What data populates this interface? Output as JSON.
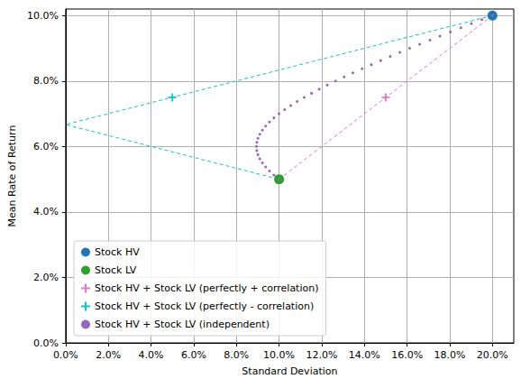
{
  "chart_data": {
    "type": "scatter",
    "x_label": "Standard Deviation",
    "y_label": "Mean Rate of Return",
    "xlim": [
      0,
      21
    ],
    "ylim": [
      0,
      10.2
    ],
    "xticks": [
      {
        "value": 0,
        "label": "0.0%"
      },
      {
        "value": 2,
        "label": "2.0%"
      },
      {
        "value": 4,
        "label": "4.0%"
      },
      {
        "value": 6,
        "label": "6.0%"
      },
      {
        "value": 8,
        "label": "8.0%"
      },
      {
        "value": 10,
        "label": "10.0%"
      },
      {
        "value": 12,
        "label": "12.0%"
      },
      {
        "value": 14,
        "label": "14.0%"
      },
      {
        "value": 16,
        "label": "16.0%"
      },
      {
        "value": 18,
        "label": "18.0%"
      },
      {
        "value": 20,
        "label": "20.0%"
      }
    ],
    "yticks": [
      {
        "value": 0,
        "label": "0.0%"
      },
      {
        "value": 2,
        "label": "2.0%"
      },
      {
        "value": 4,
        "label": "4.0%"
      },
      {
        "value": 6,
        "label": "6.0%"
      },
      {
        "value": 8,
        "label": "8.0%"
      },
      {
        "value": 10,
        "label": "10.0%"
      }
    ],
    "grid": true,
    "legend": "lower left",
    "series": [
      {
        "name": "Stock HV",
        "color": "#1f77b4",
        "marker": "circle",
        "x": [
          20
        ],
        "values": [
          10
        ]
      },
      {
        "name": "Stock LV",
        "color": "#2ca02c",
        "marker": "circle",
        "x": [
          10
        ],
        "values": [
          5
        ]
      },
      {
        "name": "Stock HV + Stock LV (perfectly + correlation)",
        "color": "#e377c2",
        "marker": "plus",
        "x": [
          15
        ],
        "values": [
          7.5
        ],
        "line": {
          "x": [
            10,
            20
          ],
          "values": [
            5,
            10
          ],
          "line_style": "dashed"
        }
      },
      {
        "name": "Stock HV + Stock LV (perfectly - correlation)",
        "color": "#17becf",
        "marker": "plus",
        "x": [
          5
        ],
        "values": [
          7.5
        ],
        "line": {
          "x": [
            20,
            0,
            10
          ],
          "values": [
            10,
            6.67,
            5
          ],
          "line_style": "dashed"
        }
      },
      {
        "name": "Stock HV + Stock LV (independent)",
        "color": "#9467bd",
        "marker": "point",
        "x": [
          10.0,
          9.76,
          9.55,
          9.37,
          9.22,
          9.1,
          9.01,
          8.96,
          8.94,
          8.96,
          9.01,
          9.1,
          9.22,
          9.37,
          9.55,
          9.76,
          10.0,
          10.26,
          10.55,
          10.85,
          11.18,
          11.52,
          11.88,
          12.26,
          12.65,
          13.05,
          13.46,
          13.89,
          14.32,
          14.76,
          15.21,
          15.66,
          16.12,
          16.59,
          17.07,
          17.54,
          18.03,
          18.52,
          19.01,
          19.5,
          20.0
        ],
        "values": [
          5.0,
          5.125,
          5.25,
          5.375,
          5.5,
          5.625,
          5.75,
          5.875,
          6.0,
          6.125,
          6.25,
          6.375,
          6.5,
          6.625,
          6.75,
          6.875,
          7.0,
          7.125,
          7.25,
          7.375,
          7.5,
          7.625,
          7.75,
          7.875,
          8.0,
          8.125,
          8.25,
          8.375,
          8.5,
          8.625,
          8.75,
          8.875,
          9.0,
          9.125,
          9.25,
          9.375,
          9.5,
          9.625,
          9.75,
          9.875,
          10.0
        ]
      }
    ]
  }
}
